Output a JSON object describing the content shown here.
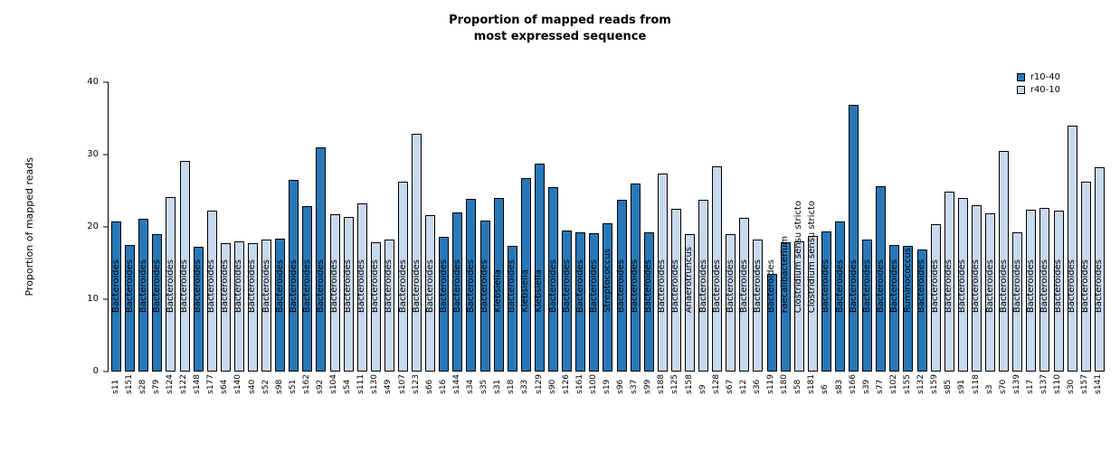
{
  "title": {
    "line1": "Proportion of mapped reads from",
    "line2": "most expressed sequence"
  },
  "chart_data": {
    "type": "bar",
    "title": "Proportion of mapped reads from most expressed sequence",
    "xlabel": "",
    "ylabel": "Proportion of mapped reads",
    "ylim": [
      0,
      40
    ],
    "yticks": [
      0,
      10,
      20,
      30,
      40
    ],
    "grid": false,
    "legend_position": "top-right",
    "legend": [
      {
        "label": "r10-40",
        "color": "#2878b8"
      },
      {
        "label": "r40-10",
        "color": "#c9d9ed"
      }
    ],
    "bars": [
      {
        "sample": "s11",
        "organism": "Bacteroides",
        "value": 20.7,
        "series": "r10-40"
      },
      {
        "sample": "s151",
        "organism": "Bacteroides",
        "value": 17.5,
        "series": "r10-40"
      },
      {
        "sample": "s28",
        "organism": "Bacteroides",
        "value": 21.1,
        "series": "r10-40"
      },
      {
        "sample": "s79",
        "organism": "Bacteroides",
        "value": 19.0,
        "series": "r10-40"
      },
      {
        "sample": "s124",
        "organism": "Bacteroides",
        "value": 24.1,
        "series": "r40-10"
      },
      {
        "sample": "s122",
        "organism": "Bacteroides",
        "value": 29.1,
        "series": "r40-10"
      },
      {
        "sample": "s148",
        "organism": "Bacteroides",
        "value": 17.3,
        "series": "r10-40"
      },
      {
        "sample": "s177",
        "organism": "Bacteroides",
        "value": 22.3,
        "series": "r40-10"
      },
      {
        "sample": "s64",
        "organism": "Bacteroides",
        "value": 17.8,
        "series": "r40-10"
      },
      {
        "sample": "s140",
        "organism": "Bacteroides",
        "value": 18.0,
        "series": "r40-10"
      },
      {
        "sample": "s40",
        "organism": "Bacteroides",
        "value": 17.7,
        "series": "r40-10"
      },
      {
        "sample": "s52",
        "organism": "Bacteroides",
        "value": 18.3,
        "series": "r40-10"
      },
      {
        "sample": "s98",
        "organism": "Bacteroides",
        "value": 18.4,
        "series": "r10-40"
      },
      {
        "sample": "s51",
        "organism": "Bacteroides",
        "value": 26.5,
        "series": "r10-40"
      },
      {
        "sample": "s162",
        "organism": "Bacteroides",
        "value": 22.9,
        "series": "r10-40"
      },
      {
        "sample": "s92",
        "organism": "Bacteroides",
        "value": 31.0,
        "series": "r10-40"
      },
      {
        "sample": "s104",
        "organism": "Bacteroides",
        "value": 21.8,
        "series": "r40-10"
      },
      {
        "sample": "s54",
        "organism": "Bacteroides",
        "value": 21.4,
        "series": "r40-10"
      },
      {
        "sample": "s111",
        "organism": "Bacteroides",
        "value": 23.3,
        "series": "r40-10"
      },
      {
        "sample": "s130",
        "organism": "Bacteroides",
        "value": 17.9,
        "series": "r40-10"
      },
      {
        "sample": "s49",
        "organism": "Bacteroides",
        "value": 18.2,
        "series": "r40-10"
      },
      {
        "sample": "s107",
        "organism": "Bacteroides",
        "value": 26.2,
        "series": "r40-10"
      },
      {
        "sample": "s123",
        "organism": "Bacteroides",
        "value": 32.9,
        "series": "r40-10"
      },
      {
        "sample": "s66",
        "organism": "Bacteroides",
        "value": 21.6,
        "series": "r40-10"
      },
      {
        "sample": "s16",
        "organism": "Bacteroides",
        "value": 18.6,
        "series": "r10-40"
      },
      {
        "sample": "s144",
        "organism": "Bacteroides",
        "value": 22.0,
        "series": "r10-40"
      },
      {
        "sample": "s34",
        "organism": "Bacteroides",
        "value": 23.9,
        "series": "r10-40"
      },
      {
        "sample": "s35",
        "organism": "Bacteroides",
        "value": 20.9,
        "series": "r10-40"
      },
      {
        "sample": "s31",
        "organism": "Klebsiella",
        "value": 24.0,
        "series": "r10-40"
      },
      {
        "sample": "s18",
        "organism": "Bacteroides",
        "value": 17.4,
        "series": "r10-40"
      },
      {
        "sample": "s33",
        "organism": "Klebsiella",
        "value": 26.7,
        "series": "r10-40"
      },
      {
        "sample": "s129",
        "organism": "Klebsiella",
        "value": 28.7,
        "series": "r10-40"
      },
      {
        "sample": "s90",
        "organism": "Bacteroides",
        "value": 25.5,
        "series": "r10-40"
      },
      {
        "sample": "s126",
        "organism": "Bacteroides",
        "value": 19.5,
        "series": "r10-40"
      },
      {
        "sample": "s161",
        "organism": "Bacteroides",
        "value": 19.3,
        "series": "r10-40"
      },
      {
        "sample": "s100",
        "organism": "Bacteroides",
        "value": 19.1,
        "series": "r10-40"
      },
      {
        "sample": "s19",
        "organism": "Streptococcus",
        "value": 20.5,
        "series": "r10-40"
      },
      {
        "sample": "s96",
        "organism": "Bacteroides",
        "value": 23.8,
        "series": "r10-40"
      },
      {
        "sample": "s37",
        "organism": "Bacteroides",
        "value": 26.0,
        "series": "r10-40"
      },
      {
        "sample": "s99",
        "organism": "Bacteroides",
        "value": 19.3,
        "series": "r10-40"
      },
      {
        "sample": "s188",
        "organism": "Bacteroides",
        "value": 27.4,
        "series": "r40-10"
      },
      {
        "sample": "s125",
        "organism": "Bacteroides",
        "value": 22.5,
        "series": "r40-10"
      },
      {
        "sample": "s158",
        "organism": "Anaerotruncus",
        "value": 19.0,
        "series": "r40-10"
      },
      {
        "sample": "s9",
        "organism": "Bacteroides",
        "value": 23.8,
        "series": "r40-10"
      },
      {
        "sample": "s128",
        "organism": "Bacteroides",
        "value": 28.4,
        "series": "r40-10"
      },
      {
        "sample": "s67",
        "organism": "Bacteroides",
        "value": 19.0,
        "series": "r40-10"
      },
      {
        "sample": "s12",
        "organism": "Bacteroides",
        "value": 21.2,
        "series": "r40-10"
      },
      {
        "sample": "s36",
        "organism": "Bacteroides",
        "value": 18.2,
        "series": "r40-10"
      },
      {
        "sample": "s119",
        "organism": "Bacteroides",
        "value": 13.5,
        "series": "r10-40"
      },
      {
        "sample": "s180",
        "organism": "Faecalibacterium",
        "value": 17.9,
        "series": "r10-40"
      },
      {
        "sample": "s58",
        "organism": "Clostridium sensu stricto",
        "value": 18.0,
        "series": "r40-10"
      },
      {
        "sample": "s181",
        "organism": "Clostridium sensu stricto",
        "value": 18.7,
        "series": "r40-10"
      },
      {
        "sample": "s6",
        "organism": "Bacteroides",
        "value": 19.4,
        "series": "r10-40"
      },
      {
        "sample": "s83",
        "organism": "Bacteroides",
        "value": 20.8,
        "series": "r10-40"
      },
      {
        "sample": "s166",
        "organism": "Bacteroides",
        "value": 36.9,
        "series": "r10-40"
      },
      {
        "sample": "s39",
        "organism": "Bacteroides",
        "value": 18.3,
        "series": "r10-40"
      },
      {
        "sample": "s77",
        "organism": "Bacteroides",
        "value": 25.6,
        "series": "r10-40"
      },
      {
        "sample": "s102",
        "organism": "Bacteroides",
        "value": 17.5,
        "series": "r10-40"
      },
      {
        "sample": "s155",
        "organism": "Ruminococcus",
        "value": 17.4,
        "series": "r10-40"
      },
      {
        "sample": "s132",
        "organism": "Bacteroides",
        "value": 16.9,
        "series": "r10-40"
      },
      {
        "sample": "s159",
        "organism": "Bacteroides",
        "value": 20.4,
        "series": "r40-10"
      },
      {
        "sample": "s85",
        "organism": "Bacteroides",
        "value": 24.9,
        "series": "r40-10"
      },
      {
        "sample": "s91",
        "organism": "Bacteroides",
        "value": 24.0,
        "series": "r40-10"
      },
      {
        "sample": "s118",
        "organism": "Bacteroides",
        "value": 23.0,
        "series": "r40-10"
      },
      {
        "sample": "s3",
        "organism": "Bacteroides",
        "value": 21.9,
        "series": "r40-10"
      },
      {
        "sample": "s70",
        "organism": "Bacteroides",
        "value": 30.5,
        "series": "r40-10"
      },
      {
        "sample": "s139",
        "organism": "Bacteroides",
        "value": 19.2,
        "series": "r40-10"
      },
      {
        "sample": "s17",
        "organism": "Bacteroides",
        "value": 22.4,
        "series": "r40-10"
      },
      {
        "sample": "s137",
        "organism": "Bacteroides",
        "value": 22.6,
        "series": "r40-10"
      },
      {
        "sample": "s110",
        "organism": "Bacteroides",
        "value": 22.3,
        "series": "r40-10"
      },
      {
        "sample": "s30",
        "organism": "Bacteroides",
        "value": 34.0,
        "series": "r40-10"
      },
      {
        "sample": "s157",
        "organism": "Bacteroides",
        "value": 26.3,
        "series": "r40-10"
      },
      {
        "sample": "s141",
        "organism": "Bacteroides",
        "value": 28.3,
        "series": "r40-10"
      }
    ]
  }
}
